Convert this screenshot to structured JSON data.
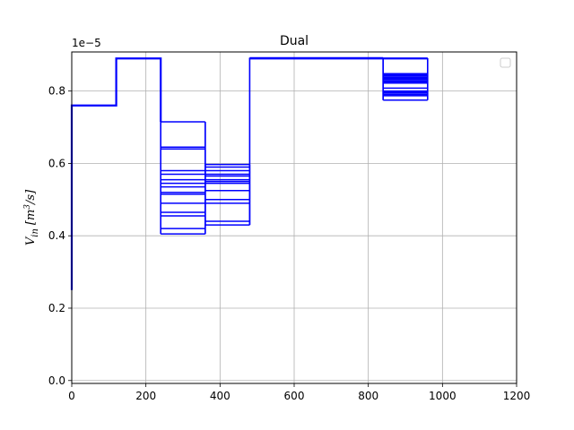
{
  "chart_data": {
    "type": "line",
    "title": "Dual",
    "xlabel": "",
    "ylabel": "V̇_in [m³/s]",
    "ylabel_parts": {
      "base": "V",
      "sub": "in",
      "unit": "[m",
      "exp": "3",
      "unit_end": "/s]"
    },
    "y_offset_text": "1e−5",
    "xlim": [
      0,
      1200
    ],
    "ylim": [
      -8e-08,
      9.08e-06
    ],
    "x_ticks": [
      0,
      200,
      400,
      600,
      800,
      1000,
      1200
    ],
    "x_tick_labels": [
      "0",
      "200",
      "400",
      "600",
      "800",
      "1000",
      "1200"
    ],
    "y_ticks": [
      0,
      2e-06,
      4e-06,
      6e-06,
      8e-06
    ],
    "y_tick_labels": [
      "0.0",
      "0.2",
      "0.4",
      "0.6",
      "0.8"
    ],
    "grid": true,
    "legend": {
      "placement": "top-right",
      "entries": []
    },
    "color": "#0000ff",
    "main_series": {
      "name": "",
      "x": [
        0,
        0,
        120,
        120,
        240,
        240
      ],
      "y": [
        2.5e-06,
        7.6e-06,
        7.6e-06,
        8.9e-06,
        8.9e-06,
        7.15e-06
      ]
    },
    "step_segments": [
      {
        "x0": 240,
        "x1": 360,
        "levels": [
          7.15e-06,
          6.45e-06,
          6.4e-06,
          5.8e-06,
          5.7e-06,
          5.55e-06,
          5.45e-06,
          5.35e-06,
          5.2e-06,
          5.15e-06,
          4.9e-06,
          4.65e-06,
          4.55e-06,
          4.2e-06,
          4.05e-06
        ]
      },
      {
        "x0": 360,
        "x1": 480,
        "levels": [
          5.97e-06,
          5.9e-06,
          5.8e-06,
          5.7e-06,
          5.65e-06,
          5.55e-06,
          5.5e-06,
          5.45e-06,
          5.25e-06,
          5e-06,
          4.9e-06,
          4.4e-06,
          4.3e-06
        ]
      },
      {
        "x0": 480,
        "x1": 840,
        "levels": [
          8.92e-06,
          8.89e-06
        ]
      },
      {
        "x0": 840,
        "x1": 960,
        "levels": [
          8.91e-06,
          8.89e-06,
          8.48e-06,
          8.45e-06,
          8.42e-06,
          8.38e-06,
          8.35e-06,
          8.32e-06,
          8.28e-06,
          8.25e-06,
          8.22e-06,
          8.08e-06,
          8e-06,
          7.97e-06,
          7.94e-06,
          7.9e-06,
          7.87e-06,
          7.75e-06
        ]
      }
    ]
  }
}
